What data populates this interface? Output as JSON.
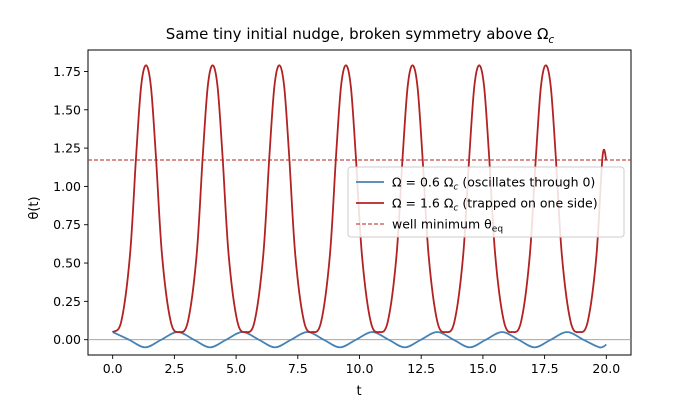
{
  "chart_data": {
    "type": "line",
    "title": "Same tiny initial nudge, broken symmetry above Ω",
    "title_sub": "c",
    "xlabel": "t",
    "ylabel": "θ(t)",
    "xlim": [
      -1.0,
      21.0
    ],
    "ylim": [
      -0.1,
      1.89
    ],
    "xticks": [
      0.0,
      2.5,
      5.0,
      7.5,
      10.0,
      12.5,
      15.0,
      17.5,
      20.0
    ],
    "xtick_labels": [
      "0.0",
      "2.5",
      "5.0",
      "7.5",
      "10.0",
      "12.5",
      "15.0",
      "17.5",
      "20.0"
    ],
    "yticks": [
      0.0,
      0.25,
      0.5,
      0.75,
      1.0,
      1.25,
      1.5,
      1.75
    ],
    "ytick_labels": [
      "0.00",
      "0.25",
      "0.50",
      "0.75",
      "1.00",
      "1.25",
      "1.50",
      "1.75"
    ],
    "grid": false,
    "legend_position": "center-right",
    "series": [
      {
        "name": "Ω = 0.6 Ω",
        "name_sub": "c",
        "name_rest": " (oscillates through 0)",
        "color": "#4682b4",
        "style": "solid",
        "x": [
          0.0,
          0.6575,
          1.315,
          1.9725,
          2.63,
          3.2875,
          3.945,
          4.6025,
          5.26,
          5.9175,
          6.575,
          7.2325,
          7.89,
          8.5475,
          9.205,
          9.8625,
          10.52,
          11.1775,
          11.835,
          12.4925,
          13.15,
          13.8075,
          14.465,
          15.1225,
          15.78,
          16.4375,
          17.095,
          17.7525,
          18.41,
          19.0675,
          19.725,
          20.0
        ],
        "y": [
          0.05,
          0.0,
          -0.05,
          0.0,
          0.05,
          0.0,
          -0.05,
          0.0,
          0.05,
          0.0,
          -0.05,
          0.0,
          0.05,
          0.0,
          -0.05,
          0.0,
          0.05,
          0.0,
          -0.05,
          0.0,
          0.05,
          0.0,
          -0.05,
          0.0,
          0.05,
          0.0,
          -0.05,
          0.0,
          0.05,
          0.0,
          -0.05,
          -0.032
        ]
      },
      {
        "name": "Ω = 1.6 Ω",
        "name_sub": "c",
        "name_rest": " (trapped on one side)",
        "color": "#b22222",
        "style": "solid",
        "x": [
          0.0,
          0.35,
          0.7,
          0.95,
          1.15,
          1.35,
          1.55,
          1.75,
          2.0,
          2.35,
          2.7,
          3.05,
          3.4,
          3.65,
          3.85,
          4.05,
          4.25,
          4.45,
          4.7,
          5.05,
          5.4,
          5.75,
          6.1,
          6.35,
          6.55,
          6.75,
          6.95,
          7.15,
          7.4,
          7.75,
          8.1,
          8.45,
          8.8,
          9.05,
          9.25,
          9.45,
          9.65,
          9.85,
          10.1,
          10.45,
          10.8,
          11.15,
          11.5,
          11.75,
          11.95,
          12.15,
          12.35,
          12.55,
          12.8,
          13.15,
          13.5,
          13.85,
          14.2,
          14.45,
          14.65,
          14.85,
          15.05,
          15.25,
          15.5,
          15.85,
          16.2,
          16.55,
          16.9,
          17.15,
          17.35,
          17.55,
          17.75,
          17.95,
          18.2,
          18.55,
          18.9,
          19.25,
          19.6,
          19.85,
          20.0
        ],
        "y": [
          0.05,
          0.12,
          0.55,
          1.2,
          1.65,
          1.79,
          1.65,
          1.2,
          0.55,
          0.12,
          0.05,
          0.12,
          0.55,
          1.2,
          1.65,
          1.79,
          1.65,
          1.2,
          0.55,
          0.12,
          0.05,
          0.12,
          0.55,
          1.2,
          1.65,
          1.79,
          1.65,
          1.2,
          0.55,
          0.12,
          0.05,
          0.12,
          0.55,
          1.2,
          1.65,
          1.79,
          1.65,
          1.2,
          0.55,
          0.12,
          0.05,
          0.12,
          0.55,
          1.2,
          1.65,
          1.79,
          1.65,
          1.2,
          0.55,
          0.12,
          0.05,
          0.12,
          0.55,
          1.2,
          1.65,
          1.79,
          1.65,
          1.2,
          0.55,
          0.12,
          0.05,
          0.12,
          0.55,
          1.2,
          1.65,
          1.79,
          1.65,
          1.2,
          0.55,
          0.12,
          0.05,
          0.12,
          0.55,
          1.2,
          1.17
        ]
      },
      {
        "name": "well minimum θ",
        "name_sub": "eq",
        "name_rest": "",
        "color": "#b22222",
        "style": "dashed",
        "hline": 1.172
      }
    ],
    "reference_line": {
      "y": 0.0,
      "color": "#999999"
    }
  }
}
